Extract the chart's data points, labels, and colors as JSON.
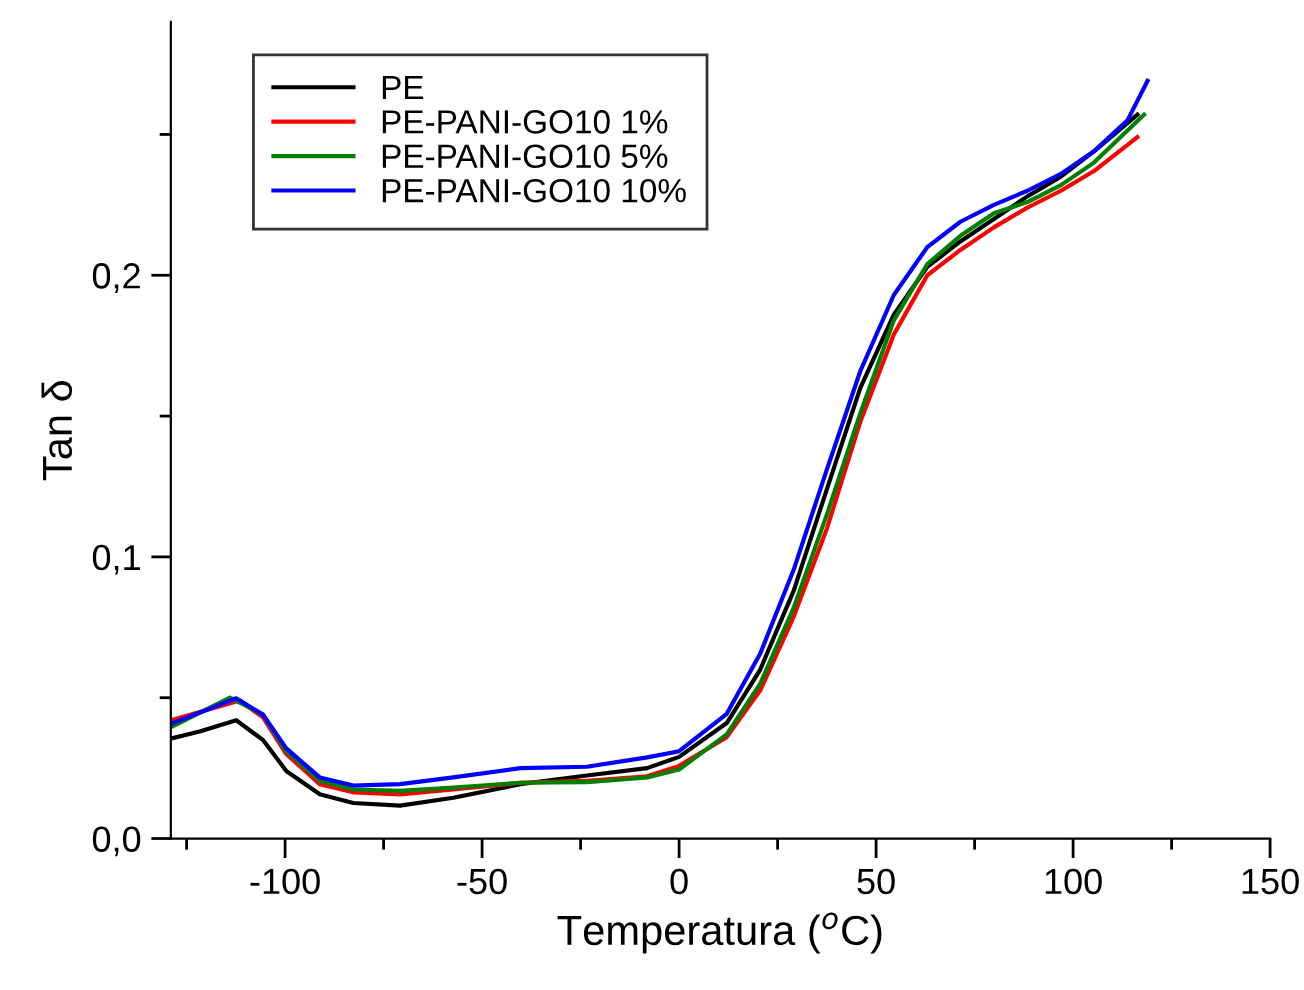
{
  "chart_data": {
    "type": "line",
    "xlabel": "Temperatura ($^{o}$C)",
    "ylabel": "Tan δ",
    "xlim": [
      -129,
      150
    ],
    "ylim": [
      0,
      0.29
    ],
    "xticks": [
      {
        "value": -125,
        "label": null
      },
      -100,
      {
        "value": -75,
        "label": null
      },
      -50,
      {
        "value": -25,
        "label": null
      },
      0,
      {
        "value": 25,
        "label": null
      },
      50,
      {
        "value": 75,
        "label": null
      },
      100,
      {
        "value": 125,
        "label": null
      },
      150
    ],
    "yticks": [
      {
        "value": 0,
        "label": "0,0"
      },
      {
        "value": 0.05,
        "label": null
      },
      {
        "value": 0.1,
        "label": "0,1"
      },
      {
        "value": 0.15,
        "label": null
      },
      {
        "value": 0.2,
        "label": "0,2"
      },
      {
        "value": 0.25,
        "label": null
      }
    ],
    "grid": false,
    "legend": "top left",
    "marker": "none",
    "line_style": "solid",
    "series": [
      {
        "name": "PE",
        "color": "#000000",
        "x": [
          -129,
          -121.7,
          -112.4,
          -105.6,
          -99.7,
          -91.2,
          -82.7,
          -70.8,
          -57.3,
          -40.3,
          -23.4,
          -8.1,
          0,
          12.1,
          20.6,
          29.1,
          37.5,
          46,
          54.5,
          63,
          71.4,
          79.9,
          88.4,
          96.9,
          105.3,
          116.3
        ],
        "values": [
          0.0355,
          0.038,
          0.042,
          0.035,
          0.024,
          0.0157,
          0.0126,
          0.0117,
          0.0145,
          0.0193,
          0.0224,
          0.025,
          0.029,
          0.041,
          0.06,
          0.088,
          0.124,
          0.16,
          0.186,
          0.203,
          0.212,
          0.22,
          0.228,
          0.235,
          0.244,
          0.257
        ]
      },
      {
        "name": "PE-PANI-GO10 1%",
        "color": "#ff0000",
        "x": [
          -129,
          -111.5,
          -105.6,
          -99.7,
          -91.2,
          -82.7,
          -70.8,
          -57.3,
          -40.3,
          -23.4,
          -8.1,
          0,
          12.1,
          20.6,
          29.1,
          37.5,
          46,
          54.5,
          63,
          71.4,
          79.9,
          88.4,
          96.9,
          105.3,
          116.3
        ],
        "values": [
          0.042,
          0.049,
          0.043,
          0.03,
          0.0193,
          0.0164,
          0.0157,
          0.0174,
          0.0198,
          0.0205,
          0.0221,
          0.0258,
          0.036,
          0.0526,
          0.0788,
          0.11,
          0.148,
          0.179,
          0.2,
          0.209,
          0.217,
          0.224,
          0.23,
          0.237,
          0.249
        ]
      },
      {
        "name": "PE-PANI-GO10 5%",
        "color": "#008000",
        "x": [
          -129,
          -114,
          -105.6,
          -99.7,
          -91.2,
          -82.7,
          -70.8,
          -57.3,
          -40.3,
          -23.4,
          -8.1,
          0,
          12.1,
          20.6,
          29.1,
          37.5,
          46,
          54.5,
          63,
          71.4,
          79.9,
          88.4,
          96.9,
          105.3,
          118
        ],
        "values": [
          0.0395,
          0.05,
          0.044,
          0.031,
          0.0205,
          0.0174,
          0.0169,
          0.0181,
          0.0198,
          0.02,
          0.0217,
          0.0245,
          0.037,
          0.055,
          0.082,
          0.115,
          0.151,
          0.184,
          0.204,
          0.214,
          0.222,
          0.226,
          0.232,
          0.24,
          0.257
        ]
      },
      {
        "name": "PE-PANI-GO10 10%",
        "color": "#0000ff",
        "x": [
          -129,
          -112.4,
          -105.6,
          -99.7,
          -91.2,
          -82.7,
          -70.8,
          -57.3,
          -40.3,
          -23.4,
          -8.1,
          0,
          12.1,
          20.6,
          29.1,
          37.5,
          46,
          54.5,
          63,
          71.4,
          79.9,
          88.4,
          96.9,
          105.3,
          113.8,
          118.9
        ],
        "values": [
          0.0407,
          0.0498,
          0.044,
          0.032,
          0.0217,
          0.0188,
          0.0193,
          0.0217,
          0.025,
          0.0255,
          0.0288,
          0.031,
          0.0443,
          0.0657,
          0.0955,
          0.131,
          0.166,
          0.193,
          0.21,
          0.219,
          0.225,
          0.23,
          0.236,
          0.244,
          0.255,
          0.269
        ]
      }
    ]
  }
}
